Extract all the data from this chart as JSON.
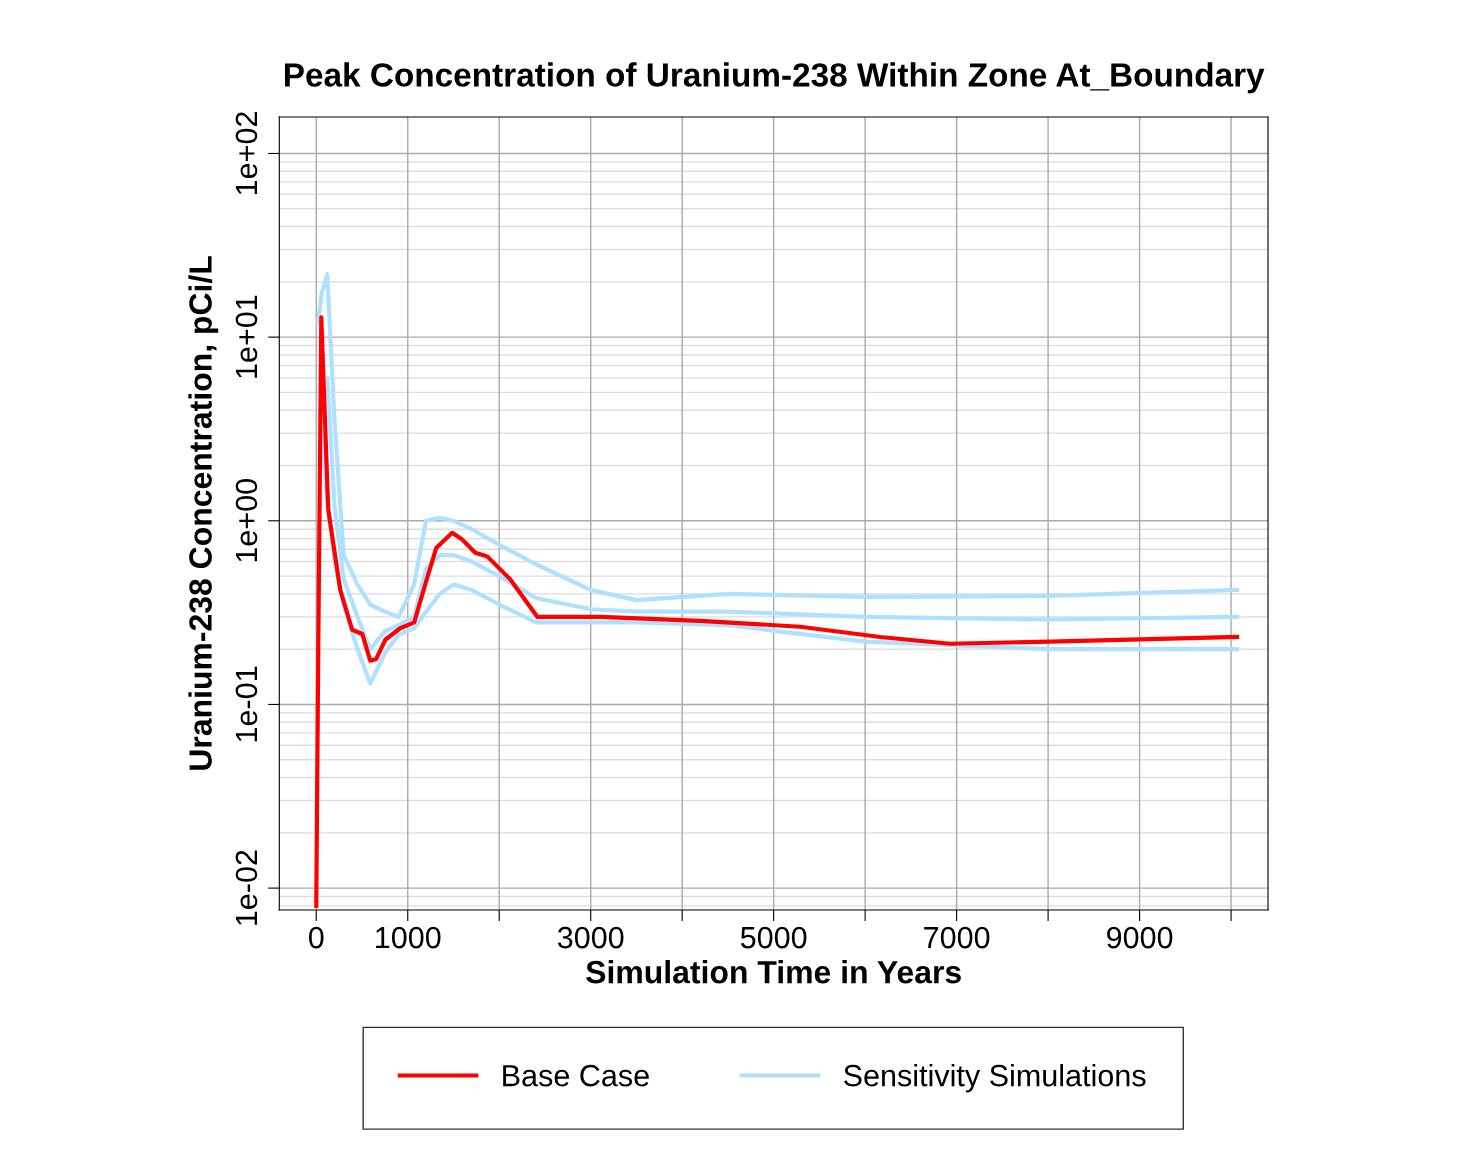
{
  "chart_data": {
    "type": "line",
    "title": "Peak Concentration of Uranium-238 Within Zone At_Boundary",
    "xlabel": "Simulation Time in Years",
    "ylabel": "Uranium-238 Concentration, pCi/L",
    "log": "y",
    "grid": true,
    "legend": "bottom",
    "marker": "none",
    "line_style": "solid",
    "xlim": [
      -404,
      10404
    ],
    "ylim": [
      0.0076,
      158
    ],
    "xticks": [
      0,
      1000,
      {
        "value": 2000,
        "label": null
      },
      3000,
      {
        "value": 4000,
        "label": null
      },
      5000,
      {
        "value": 6000,
        "label": null
      },
      7000,
      {
        "value": 8000,
        "label": null
      },
      9000,
      {
        "value": 10000,
        "label": null
      }
    ],
    "yticks": [
      {
        "value": 0.01,
        "label": "1e-02"
      },
      {
        "value": 0.1,
        "label": "1e-01"
      },
      {
        "value": 1,
        "label": "1e+00"
      },
      {
        "value": 10,
        "label": "1e+01"
      },
      {
        "value": 100,
        "label": "1e+02"
      }
    ],
    "series": [
      {
        "name": "Sensitivity Simulations",
        "color": "#b0e0ff",
        "x": [
          22,
          55,
          120,
          200,
          300,
          450,
          590,
          750,
          900,
          1070,
          1200,
          1350,
          1500,
          1700,
          2000,
          2400,
          3000,
          3500,
          4500,
          6000,
          8000,
          10066
        ],
        "values": [
          12,
          17,
          22,
          3.5,
          0.65,
          0.45,
          0.35,
          0.32,
          0.3,
          0.45,
          1.0,
          1.04,
          1.0,
          0.9,
          0.74,
          0.58,
          0.42,
          0.37,
          0.4,
          0.385,
          0.39,
          0.42
        ]
      },
      {
        "color": "#b0e0ff",
        "x": [
          120,
          200,
          300,
          450,
          590,
          750,
          900,
          1070,
          1200,
          1350,
          1500,
          1700,
          2000,
          2400,
          3000,
          3500,
          4500,
          6000,
          8000,
          10066
        ],
        "values": [
          6,
          1.2,
          0.48,
          0.3,
          0.2,
          0.25,
          0.27,
          0.3,
          0.55,
          0.65,
          0.65,
          0.6,
          0.5,
          0.38,
          0.33,
          0.32,
          0.32,
          0.3,
          0.29,
          0.3
        ]
      },
      {
        "color": "#b0e0ff",
        "x": [
          55,
          120,
          200,
          300,
          450,
          590,
          750,
          900,
          1070,
          1200,
          1350,
          1500,
          1700,
          2000,
          2400,
          3000,
          3500,
          4500,
          6000,
          8000,
          10066
        ],
        "values": [
          3,
          1.3,
          0.6,
          0.35,
          0.2,
          0.13,
          0.19,
          0.24,
          0.26,
          0.32,
          0.4,
          0.45,
          0.42,
          0.35,
          0.28,
          0.28,
          0.28,
          0.27,
          0.22,
          0.2,
          0.2
        ]
      },
      {
        "name": "Base Case",
        "color": "#ff0000",
        "x": [
          0,
          22,
          55,
          87,
          131,
          262,
          393,
          503,
          590,
          656,
          754,
          918,
          1071,
          1191,
          1311,
          1486,
          1596,
          1738,
          1869,
          2120,
          2415,
          3104,
          4197,
          5290,
          6164,
          6929,
          8022,
          10066
        ],
        "values": [
          0.008,
          0.2,
          12.8,
          4.6,
          1.15,
          0.42,
          0.255,
          0.242,
          0.173,
          0.177,
          0.225,
          0.26,
          0.28,
          0.45,
          0.71,
          0.86,
          0.79,
          0.67,
          0.64,
          0.48,
          0.3,
          0.3,
          0.285,
          0.265,
          0.233,
          0.214,
          0.22,
          0.233
        ]
      }
    ]
  }
}
